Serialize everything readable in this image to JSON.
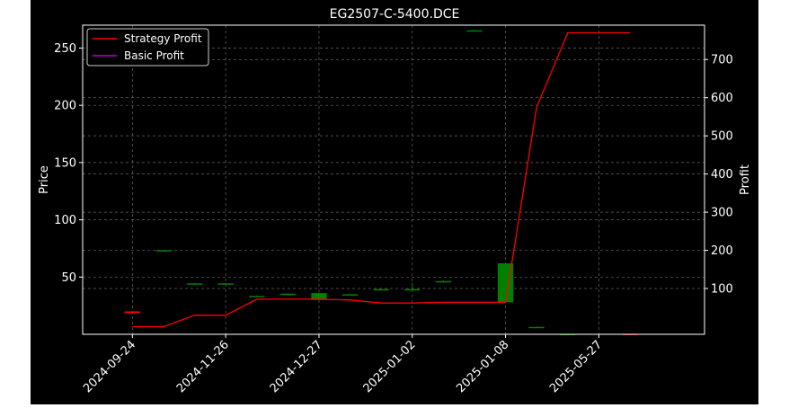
{
  "chart_data": {
    "type": "candlestick",
    "title": "EG2507-C-5400.DCE",
    "ylabel_left": "Price",
    "ylabel_right": "Profit",
    "xlabel": "",
    "ylim_left": [
      0,
      270
    ],
    "ylim_right": [
      -20,
      790
    ],
    "yticks_left": [
      50,
      100,
      150,
      200,
      250
    ],
    "yticks_right": [
      100,
      200,
      300,
      400,
      500,
      600,
      700
    ],
    "xtick_labels": [
      "2024-09-24",
      "2024-11-26",
      "2024-12-27",
      "2025-01-02",
      "2025-01-08",
      "2025-05-27"
    ],
    "xtick_positions": [
      0,
      3,
      6,
      9,
      12,
      15
    ],
    "grid": true,
    "legend_position": "top-left",
    "colors": {
      "up": "#008000",
      "down": "#ff0000",
      "strategy": "#ff0000",
      "basic": "#bf00bf",
      "grid": "#808080"
    },
    "candles": [
      {
        "i": 0,
        "open": 20,
        "close": 18.5,
        "high": 20.5,
        "low": 18
      },
      {
        "i": 1,
        "open": 73.5,
        "close": 73.5,
        "high": 74,
        "low": 73
      },
      {
        "i": 2,
        "open": 44.5,
        "close": 44.5,
        "high": 45,
        "low": 44
      },
      {
        "i": 3,
        "open": 44.5,
        "close": 44.5,
        "high": 45,
        "low": 44
      },
      {
        "i": 4,
        "open": 33.5,
        "close": 33.5,
        "high": 34,
        "low": 33
      },
      {
        "i": 5,
        "open": 35.5,
        "close": 35.5,
        "high": 36,
        "low": 35
      },
      {
        "i": 6,
        "open": 30,
        "close": 36,
        "high": 36.5,
        "low": 29.5
      },
      {
        "i": 7,
        "open": 34.5,
        "close": 35,
        "high": 35.5,
        "low": 34.5
      },
      {
        "i": 8,
        "open": 39.5,
        "close": 39.5,
        "high": 40,
        "low": 39
      },
      {
        "i": 9,
        "open": 39.5,
        "close": 39.5,
        "high": 45,
        "low": 37
      },
      {
        "i": 10,
        "open": 45.5,
        "close": 46.5,
        "high": 47,
        "low": 45
      },
      {
        "i": 11,
        "open": 265.5,
        "close": 265.5,
        "high": 266,
        "low": 265
      },
      {
        "i": 12,
        "open": 28,
        "close": 62,
        "high": 62,
        "low": 28
      },
      {
        "i": 13,
        "open": 6.5,
        "close": 6.5,
        "high": 7,
        "low": 6
      },
      {
        "i": 14,
        "open": 0.2,
        "close": 0.4,
        "high": 0.4,
        "low": 0.2
      },
      {
        "i": 16,
        "open": 0.5,
        "close": 0.3,
        "high": 0.5,
        "low": 0.3
      }
    ],
    "series": [
      {
        "name": "Strategy Profit",
        "x": [
          0,
          1,
          2,
          3,
          4,
          5,
          6,
          7,
          8,
          9,
          10,
          11,
          12,
          13,
          14,
          15,
          16
        ],
        "values": [
          0,
          0,
          30,
          30,
          72,
          72,
          72,
          70,
          62,
          62,
          64,
          64,
          64,
          575,
          770,
          770,
          770
        ]
      },
      {
        "name": "Basic Profit",
        "x": [],
        "values": []
      }
    ]
  }
}
